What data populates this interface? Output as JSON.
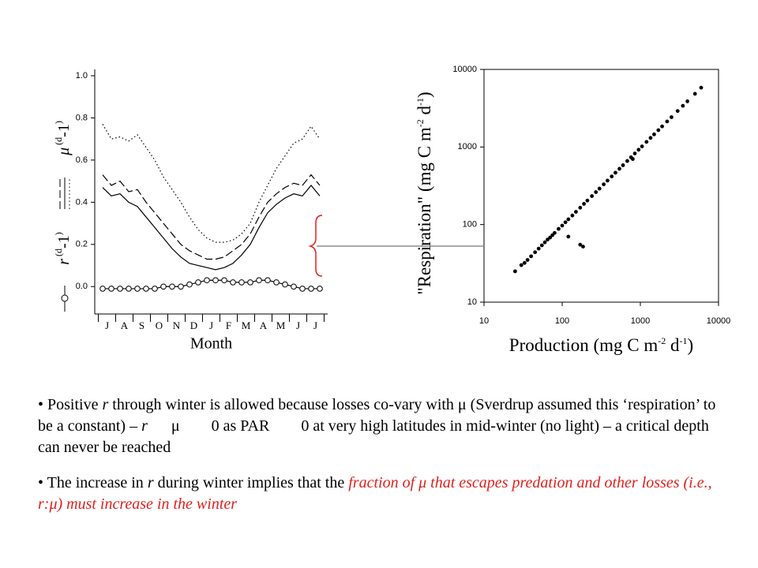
{
  "chart_data": [
    {
      "type": "line",
      "xlabel": "Month",
      "ylabel_r": [
        "r",
        " (d",
        "-1",
        ")"
      ],
      "ylabel_mu": [
        "μ",
        " (d",
        "-1",
        ")"
      ],
      "categories": [
        "J",
        null,
        "A",
        null,
        "S",
        null,
        "O",
        null,
        "N",
        null,
        "D",
        null,
        "J",
        null,
        "F",
        null,
        "M",
        null,
        "A",
        null,
        "M",
        null,
        "J",
        null,
        "J",
        null
      ],
      "ylim": [
        -0.13,
        1.0
      ],
      "yticks": [
        {
          "value": 0,
          "label": "0.0"
        },
        {
          "value": 0.2,
          "label": "0.2"
        },
        {
          "value": 0.4,
          "label": "0.4"
        },
        {
          "value": 0.6,
          "label": "0.6"
        },
        {
          "value": 0.8,
          "label": "0.8"
        },
        {
          "value": 1.0,
          "label": "1.0"
        }
      ],
      "series": [
        {
          "style": "dotted",
          "color": "#000000",
          "values": [
            0.77,
            0.7,
            0.71,
            0.69,
            0.72,
            0.66,
            0.6,
            0.52,
            0.46,
            0.4,
            0.33,
            0.27,
            0.23,
            0.21,
            0.21,
            0.22,
            0.25,
            0.3,
            0.4,
            0.48,
            0.56,
            0.62,
            0.68,
            0.7,
            0.76,
            0.7
          ]
        },
        {
          "style": "dashed",
          "color": "#000000",
          "values": [
            0.53,
            0.48,
            0.5,
            0.45,
            0.46,
            0.4,
            0.35,
            0.3,
            0.25,
            0.2,
            0.17,
            0.15,
            0.13,
            0.13,
            0.14,
            0.17,
            0.2,
            0.25,
            0.33,
            0.4,
            0.44,
            0.47,
            0.49,
            0.48,
            0.53,
            0.48
          ]
        },
        {
          "style": "solid",
          "color": "#000000",
          "values": [
            0.47,
            0.43,
            0.44,
            0.4,
            0.38,
            0.33,
            0.28,
            0.23,
            0.18,
            0.14,
            0.11,
            0.1,
            0.09,
            0.08,
            0.09,
            0.11,
            0.15,
            0.2,
            0.28,
            0.35,
            0.39,
            0.42,
            0.44,
            0.43,
            0.48,
            0.43
          ]
        },
        {
          "style": "circles",
          "color": "#000000",
          "values": [
            -0.01,
            -0.01,
            -0.01,
            -0.01,
            -0.01,
            -0.01,
            -0.01,
            0.0,
            0.0,
            0.0,
            0.01,
            0.02,
            0.03,
            0.03,
            0.03,
            0.02,
            0.02,
            0.02,
            0.03,
            0.03,
            0.02,
            0.01,
            0.0,
            -0.01,
            -0.01,
            -0.01
          ]
        }
      ]
    },
    {
      "type": "scatter",
      "xlabel": [
        "Production (mg C m",
        "-2",
        " d",
        "-1",
        ")"
      ],
      "ylabel": [
        "\"Respiration\" (mg C m",
        "-2",
        " d",
        "-1",
        ")"
      ],
      "log_x": true,
      "log_y": true,
      "color": "#000000",
      "xlim": [
        10,
        10000
      ],
      "ylim": [
        10,
        10000
      ],
      "xticks": [
        10,
        100,
        1000,
        10000
      ],
      "yticks": [
        10,
        100,
        1000,
        10000
      ],
      "x": [
        25,
        30,
        33,
        36,
        40,
        45,
        50,
        55,
        60,
        65,
        70,
        75,
        80,
        90,
        100,
        110,
        120,
        135,
        150,
        170,
        190,
        210,
        240,
        270,
        300,
        340,
        380,
        430,
        480,
        540,
        600,
        680,
        760,
        850,
        950,
        1050,
        1200,
        1350,
        1500,
        1700,
        1900,
        2200,
        2500,
        3000,
        3500,
        4000,
        5000,
        6000,
        800,
        170,
        185,
        120
      ],
      "y": [
        25,
        30,
        32,
        35,
        39,
        44,
        49,
        54,
        59,
        64,
        68,
        73,
        78,
        88,
        97,
        107,
        117,
        131,
        146,
        165,
        185,
        204,
        233,
        262,
        291,
        330,
        369,
        417,
        466,
        524,
        582,
        660,
        737,
        825,
        922,
        1019,
        1164,
        1310,
        1455,
        1649,
        1843,
        2134,
        2425,
        2910,
        3395,
        3880,
        4850,
        5820,
        700,
        55,
        52,
        70
      ]
    }
  ],
  "bullets": [
    [
      {
        "text": "Positive ",
        "style": "plain"
      },
      {
        "text": "r",
        "style": "italic"
      },
      {
        "text": " through winter is allowed because losses co-vary with μ (Sverdrup assumed this ‘respiration’ to be a constant) – ",
        "style": "plain"
      },
      {
        "text": "r",
        "style": "italic"
      },
      {
        "text": "      μ        0 as PAR        0 at very high latitudes in mid-winter (no light) – a critical depth can never be reached",
        "style": "plain"
      }
    ],
    [
      {
        "text": "The increase in ",
        "style": "plain"
      },
      {
        "text": "r",
        "style": "italic"
      },
      {
        "text": " during winter implies that the ",
        "style": "plain"
      },
      {
        "text": "fraction of μ that escapes predation and other losses (i.e., r:μ) must increase in the winter",
        "style": "red-italic"
      }
    ]
  ]
}
